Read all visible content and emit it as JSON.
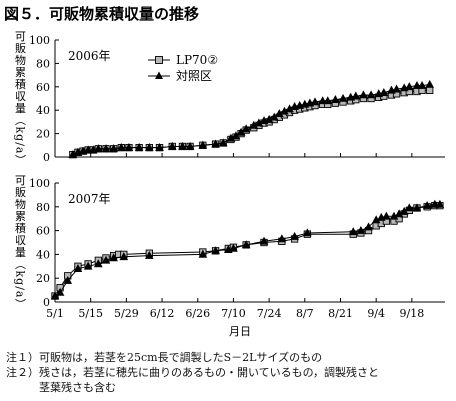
{
  "title": "図５．可販物累積収量の推移",
  "xlabel": "月日",
  "x_ticks": [
    "5/1",
    "5/15",
    "5/29",
    "6/12",
    "6/26",
    "7/10",
    "7/24",
    "8/7",
    "8/21",
    "9/4",
    "9/18"
  ],
  "colors": {
    "axis": "#000000",
    "lp70_fill": "#b8b8b8",
    "control_fill": "#000000",
    "line": "#000000"
  },
  "notes": [
    "注１）可販物は，若茎を25cm長で調製したS－2Lサイズのもの",
    "注２）残さは，若茎に穂先に曲りのあるもの・開いているもの，調製残さと",
    "　　　茎葉残さも含む"
  ],
  "chart_data": [
    {
      "type": "line",
      "panel_label": "2006年",
      "ylabel": "可販物累積収量（kg/a）",
      "xlabel": "",
      "ylim": [
        0,
        100
      ],
      "y_ticks": [
        0,
        20,
        40,
        60,
        80,
        100
      ],
      "xlim": [
        "5/1",
        "10/1"
      ],
      "legend": "top-center",
      "grid": false,
      "series": [
        {
          "name": "LP70②",
          "marker": "square-gray",
          "points": [
            [
              "5/8",
              2
            ],
            [
              "5/10",
              4
            ],
            [
              "5/12",
              5
            ],
            [
              "5/14",
              6
            ],
            [
              "5/16",
              6
            ],
            [
              "5/18",
              7
            ],
            [
              "5/21",
              7
            ],
            [
              "5/24",
              7
            ],
            [
              "5/27",
              8
            ],
            [
              "5/30",
              8
            ],
            [
              "6/3",
              8
            ],
            [
              "6/7",
              8
            ],
            [
              "6/11",
              8
            ],
            [
              "6/16",
              9
            ],
            [
              "6/20",
              9
            ],
            [
              "6/23",
              9
            ],
            [
              "6/28",
              10
            ],
            [
              "7/3",
              11
            ],
            [
              "7/6",
              12
            ],
            [
              "7/9",
              15
            ],
            [
              "7/11",
              17
            ],
            [
              "7/13",
              20
            ],
            [
              "7/15",
              23
            ],
            [
              "7/18",
              25
            ],
            [
              "7/20",
              27
            ],
            [
              "7/22",
              29
            ],
            [
              "7/24",
              30
            ],
            [
              "7/26",
              32
            ],
            [
              "7/28",
              34
            ],
            [
              "7/30",
              36
            ],
            [
              "8/1",
              38
            ],
            [
              "8/3",
              40
            ],
            [
              "8/5",
              41
            ],
            [
              "8/7",
              42
            ],
            [
              "8/9",
              43
            ],
            [
              "8/11",
              44
            ],
            [
              "8/14",
              45
            ],
            [
              "8/16",
              45
            ],
            [
              "8/19",
              46
            ],
            [
              "8/22",
              47
            ],
            [
              "8/25",
              48
            ],
            [
              "8/27",
              49
            ],
            [
              "8/30",
              50
            ],
            [
              "9/2",
              50
            ],
            [
              "9/5",
              51
            ],
            [
              "9/7",
              52
            ],
            [
              "9/10",
              53
            ],
            [
              "9/12",
              54
            ],
            [
              "9/15",
              55
            ],
            [
              "9/17",
              56
            ],
            [
              "9/20",
              56
            ],
            [
              "9/22",
              57
            ],
            [
              "9/25",
              57
            ]
          ]
        },
        {
          "name": "対照区",
          "marker": "triangle-black",
          "points": [
            [
              "5/8",
              2
            ],
            [
              "5/10",
              4
            ],
            [
              "5/12",
              5
            ],
            [
              "5/14",
              6
            ],
            [
              "5/16",
              6
            ],
            [
              "5/18",
              7
            ],
            [
              "5/21",
              7
            ],
            [
              "5/24",
              7
            ],
            [
              "5/27",
              8
            ],
            [
              "5/30",
              8
            ],
            [
              "6/3",
              8
            ],
            [
              "6/7",
              8
            ],
            [
              "6/11",
              8
            ],
            [
              "6/16",
              9
            ],
            [
              "6/20",
              9
            ],
            [
              "6/23",
              9
            ],
            [
              "6/28",
              10
            ],
            [
              "7/3",
              11
            ],
            [
              "7/6",
              12
            ],
            [
              "7/9",
              16
            ],
            [
              "7/11",
              18
            ],
            [
              "7/13",
              21
            ],
            [
              "7/15",
              24
            ],
            [
              "7/18",
              27
            ],
            [
              "7/20",
              29
            ],
            [
              "7/22",
              31
            ],
            [
              "7/24",
              32
            ],
            [
              "7/26",
              34
            ],
            [
              "7/28",
              37
            ],
            [
              "7/30",
              39
            ],
            [
              "8/1",
              41
            ],
            [
              "8/3",
              43
            ],
            [
              "8/5",
              44
            ],
            [
              "8/7",
              45
            ],
            [
              "8/9",
              46
            ],
            [
              "8/11",
              47
            ],
            [
              "8/14",
              48
            ],
            [
              "8/16",
              48
            ],
            [
              "8/19",
              49
            ],
            [
              "8/22",
              50
            ],
            [
              "8/25",
              51
            ],
            [
              "8/27",
              52
            ],
            [
              "8/30",
              53
            ],
            [
              "9/2",
              53
            ],
            [
              "9/5",
              54
            ],
            [
              "9/7",
              55
            ],
            [
              "9/10",
              57
            ],
            [
              "9/12",
              58
            ],
            [
              "9/15",
              59
            ],
            [
              "9/17",
              60
            ],
            [
              "9/20",
              61
            ],
            [
              "9/22",
              61
            ],
            [
              "9/25",
              62
            ]
          ]
        }
      ]
    },
    {
      "type": "line",
      "panel_label": "2007年",
      "ylabel": "可販物累積収量（kg/a）",
      "xlabel": "月日",
      "ylim": [
        0,
        100
      ],
      "y_ticks": [
        0,
        20,
        40,
        60,
        80,
        100
      ],
      "xlim": [
        "5/1",
        "10/1"
      ],
      "legend": "",
      "grid": false,
      "series": [
        {
          "name": "LP70②",
          "marker": "square-gray",
          "points": [
            [
              "5/1",
              5
            ],
            [
              "5/3",
              12
            ],
            [
              "5/6",
              22
            ],
            [
              "5/10",
              30
            ],
            [
              "5/14",
              32
            ],
            [
              "5/18",
              35
            ],
            [
              "5/21",
              37
            ],
            [
              "5/24",
              39
            ],
            [
              "5/26",
              40
            ],
            [
              "5/28",
              40
            ],
            [
              "6/7",
              41
            ],
            [
              "6/28",
              42
            ],
            [
              "7/3",
              43
            ],
            [
              "7/8",
              45
            ],
            [
              "7/10",
              46
            ],
            [
              "7/15",
              48
            ],
            [
              "7/22",
              50
            ],
            [
              "7/29",
              51
            ],
            [
              "8/3",
              53
            ],
            [
              "8/8",
              57
            ],
            [
              "8/26",
              57
            ],
            [
              "8/29",
              58
            ],
            [
              "9/1",
              60
            ],
            [
              "9/4",
              64
            ],
            [
              "9/6",
              66
            ],
            [
              "9/8",
              68
            ],
            [
              "9/11",
              68
            ],
            [
              "9/13",
              70
            ],
            [
              "9/15",
              74
            ],
            [
              "9/17",
              77
            ],
            [
              "9/20",
              79
            ],
            [
              "9/24",
              80
            ],
            [
              "9/27",
              81
            ],
            [
              "9/29",
              81
            ]
          ]
        },
        {
          "name": "対照区",
          "marker": "triangle-black",
          "points": [
            [
              "5/1",
              5
            ],
            [
              "5/3",
              8
            ],
            [
              "5/6",
              18
            ],
            [
              "5/10",
              28
            ],
            [
              "5/14",
              30
            ],
            [
              "5/18",
              32
            ],
            [
              "5/21",
              35
            ],
            [
              "5/24",
              37
            ],
            [
              "5/28",
              38
            ],
            [
              "6/7",
              39
            ],
            [
              "6/28",
              40
            ],
            [
              "7/3",
              43
            ],
            [
              "7/8",
              44
            ],
            [
              "7/10",
              45
            ],
            [
              "7/15",
              48
            ],
            [
              "7/22",
              51
            ],
            [
              "7/29",
              53
            ],
            [
              "8/3",
              55
            ],
            [
              "8/8",
              58
            ],
            [
              "8/26",
              59
            ],
            [
              "8/29",
              60
            ],
            [
              "9/1",
              63
            ],
            [
              "9/4",
              69
            ],
            [
              "9/6",
              71
            ],
            [
              "9/8",
              72
            ],
            [
              "9/11",
              72
            ],
            [
              "9/13",
              74
            ],
            [
              "9/15",
              76
            ],
            [
              "9/17",
              79
            ],
            [
              "9/20",
              79
            ],
            [
              "9/24",
              81
            ],
            [
              "9/27",
              82
            ],
            [
              "9/29",
              82
            ]
          ]
        }
      ]
    }
  ]
}
